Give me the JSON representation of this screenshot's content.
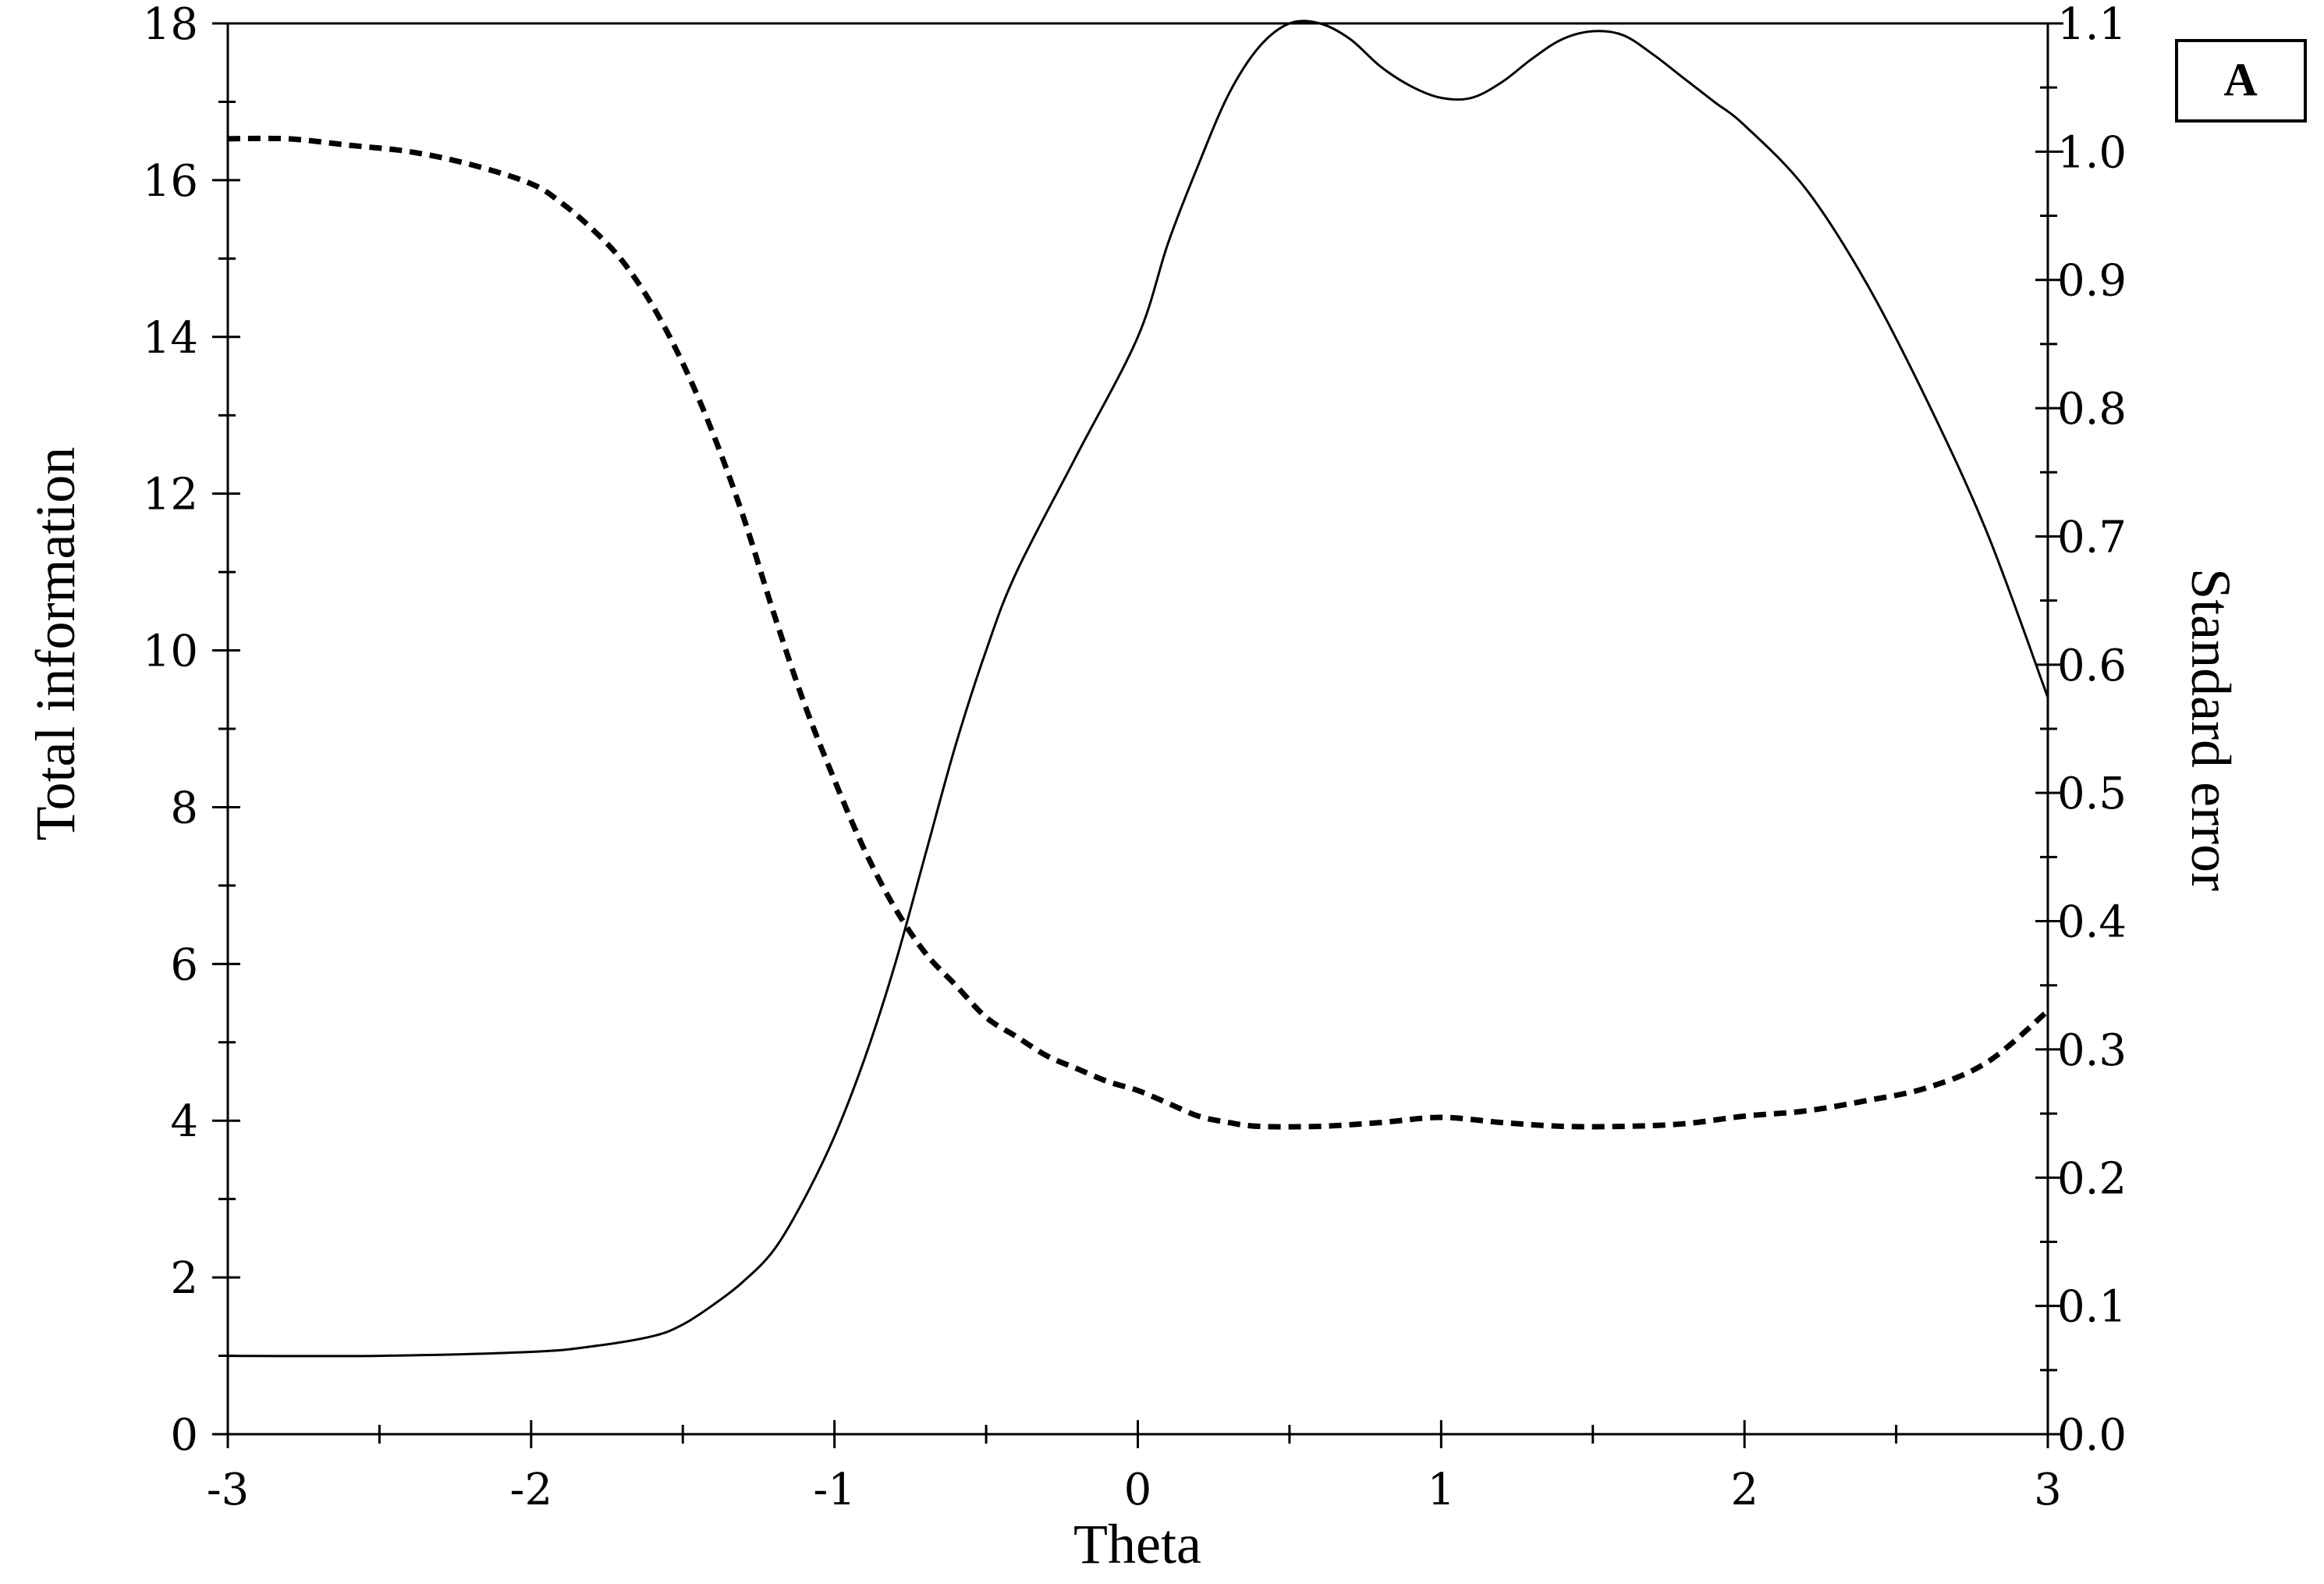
{
  "chart_data": {
    "type": "line",
    "panel_label": "A",
    "xlabel": "Theta",
    "ylabel_left": "Total information",
    "ylabel_right": "Standard error",
    "xlim": [
      -3,
      3
    ],
    "ylim_left": [
      0,
      18
    ],
    "ylim_right": [
      0.0,
      1.1
    ],
    "x_ticks": [
      -3,
      -2,
      -1,
      0,
      1,
      2,
      3
    ],
    "x_tick_labels": [
      "-3",
      "-2",
      "-1",
      "0",
      "1",
      "2",
      "3"
    ],
    "y_left_ticks": [
      0,
      2,
      4,
      6,
      8,
      10,
      12,
      14,
      16,
      18
    ],
    "y_left_tick_labels": [
      "0",
      "2",
      "4",
      "6",
      "8",
      "10",
      "12",
      "14",
      "16",
      "18"
    ],
    "y_right_ticks": [
      0.0,
      0.1,
      0.2,
      0.3,
      0.4,
      0.5,
      0.6,
      0.7,
      0.8,
      0.9,
      1.0,
      1.1
    ],
    "y_right_tick_labels": [
      "0.0",
      "0.1",
      "0.2",
      "0.3",
      "0.4",
      "0.5",
      "0.6",
      "0.7",
      "0.8",
      "0.9",
      "1.0",
      "1.1"
    ],
    "grid": false,
    "series": [
      {
        "axis": "left",
        "style": "solid",
        "color": "#000000",
        "x": [
          -3.0,
          -2.5,
          -2.0,
          -1.8,
          -1.6,
          -1.5,
          -1.4,
          -1.3,
          -1.2,
          -1.1,
          -1.0,
          -0.9,
          -0.8,
          -0.7,
          -0.6,
          -0.5,
          -0.4,
          -0.2,
          0.0,
          0.1,
          0.2,
          0.3,
          0.4,
          0.5,
          0.6,
          0.7,
          0.8,
          0.9,
          1.0,
          1.1,
          1.2,
          1.3,
          1.4,
          1.5,
          1.6,
          1.7,
          1.8,
          1.9,
          2.0,
          2.2,
          2.4,
          2.6,
          2.8,
          3.0
        ],
        "values": [
          1.0,
          1.0,
          1.05,
          1.12,
          1.25,
          1.4,
          1.65,
          1.95,
          2.35,
          3.0,
          3.8,
          4.8,
          6.0,
          7.4,
          8.8,
          10.0,
          11.0,
          12.5,
          14.0,
          15.2,
          16.2,
          17.1,
          17.7,
          18.0,
          18.0,
          17.8,
          17.45,
          17.2,
          17.05,
          17.05,
          17.25,
          17.55,
          17.8,
          17.9,
          17.85,
          17.6,
          17.3,
          17.0,
          16.7,
          15.9,
          14.7,
          13.2,
          11.5,
          9.4
        ]
      },
      {
        "axis": "right",
        "style": "dashed",
        "color": "#000000",
        "x": [
          -3.0,
          -2.8,
          -2.6,
          -2.4,
          -2.2,
          -2.0,
          -1.9,
          -1.8,
          -1.7,
          -1.6,
          -1.5,
          -1.4,
          -1.3,
          -1.2,
          -1.1,
          -1.0,
          -0.9,
          -0.8,
          -0.7,
          -0.6,
          -0.5,
          -0.4,
          -0.3,
          -0.2,
          -0.1,
          0.0,
          0.1,
          0.2,
          0.3,
          0.4,
          0.6,
          0.8,
          1.0,
          1.2,
          1.4,
          1.6,
          1.8,
          2.0,
          2.2,
          2.4,
          2.6,
          2.8,
          3.0
        ],
        "values": [
          1.01,
          1.01,
          1.005,
          1.0,
          0.99,
          0.975,
          0.96,
          0.94,
          0.915,
          0.88,
          0.835,
          0.78,
          0.715,
          0.64,
          0.57,
          0.51,
          0.455,
          0.41,
          0.375,
          0.35,
          0.325,
          0.31,
          0.295,
          0.285,
          0.275,
          0.268,
          0.258,
          0.248,
          0.243,
          0.24,
          0.24,
          0.243,
          0.247,
          0.243,
          0.24,
          0.24,
          0.242,
          0.248,
          0.252,
          0.26,
          0.27,
          0.29,
          0.33
        ]
      }
    ]
  }
}
